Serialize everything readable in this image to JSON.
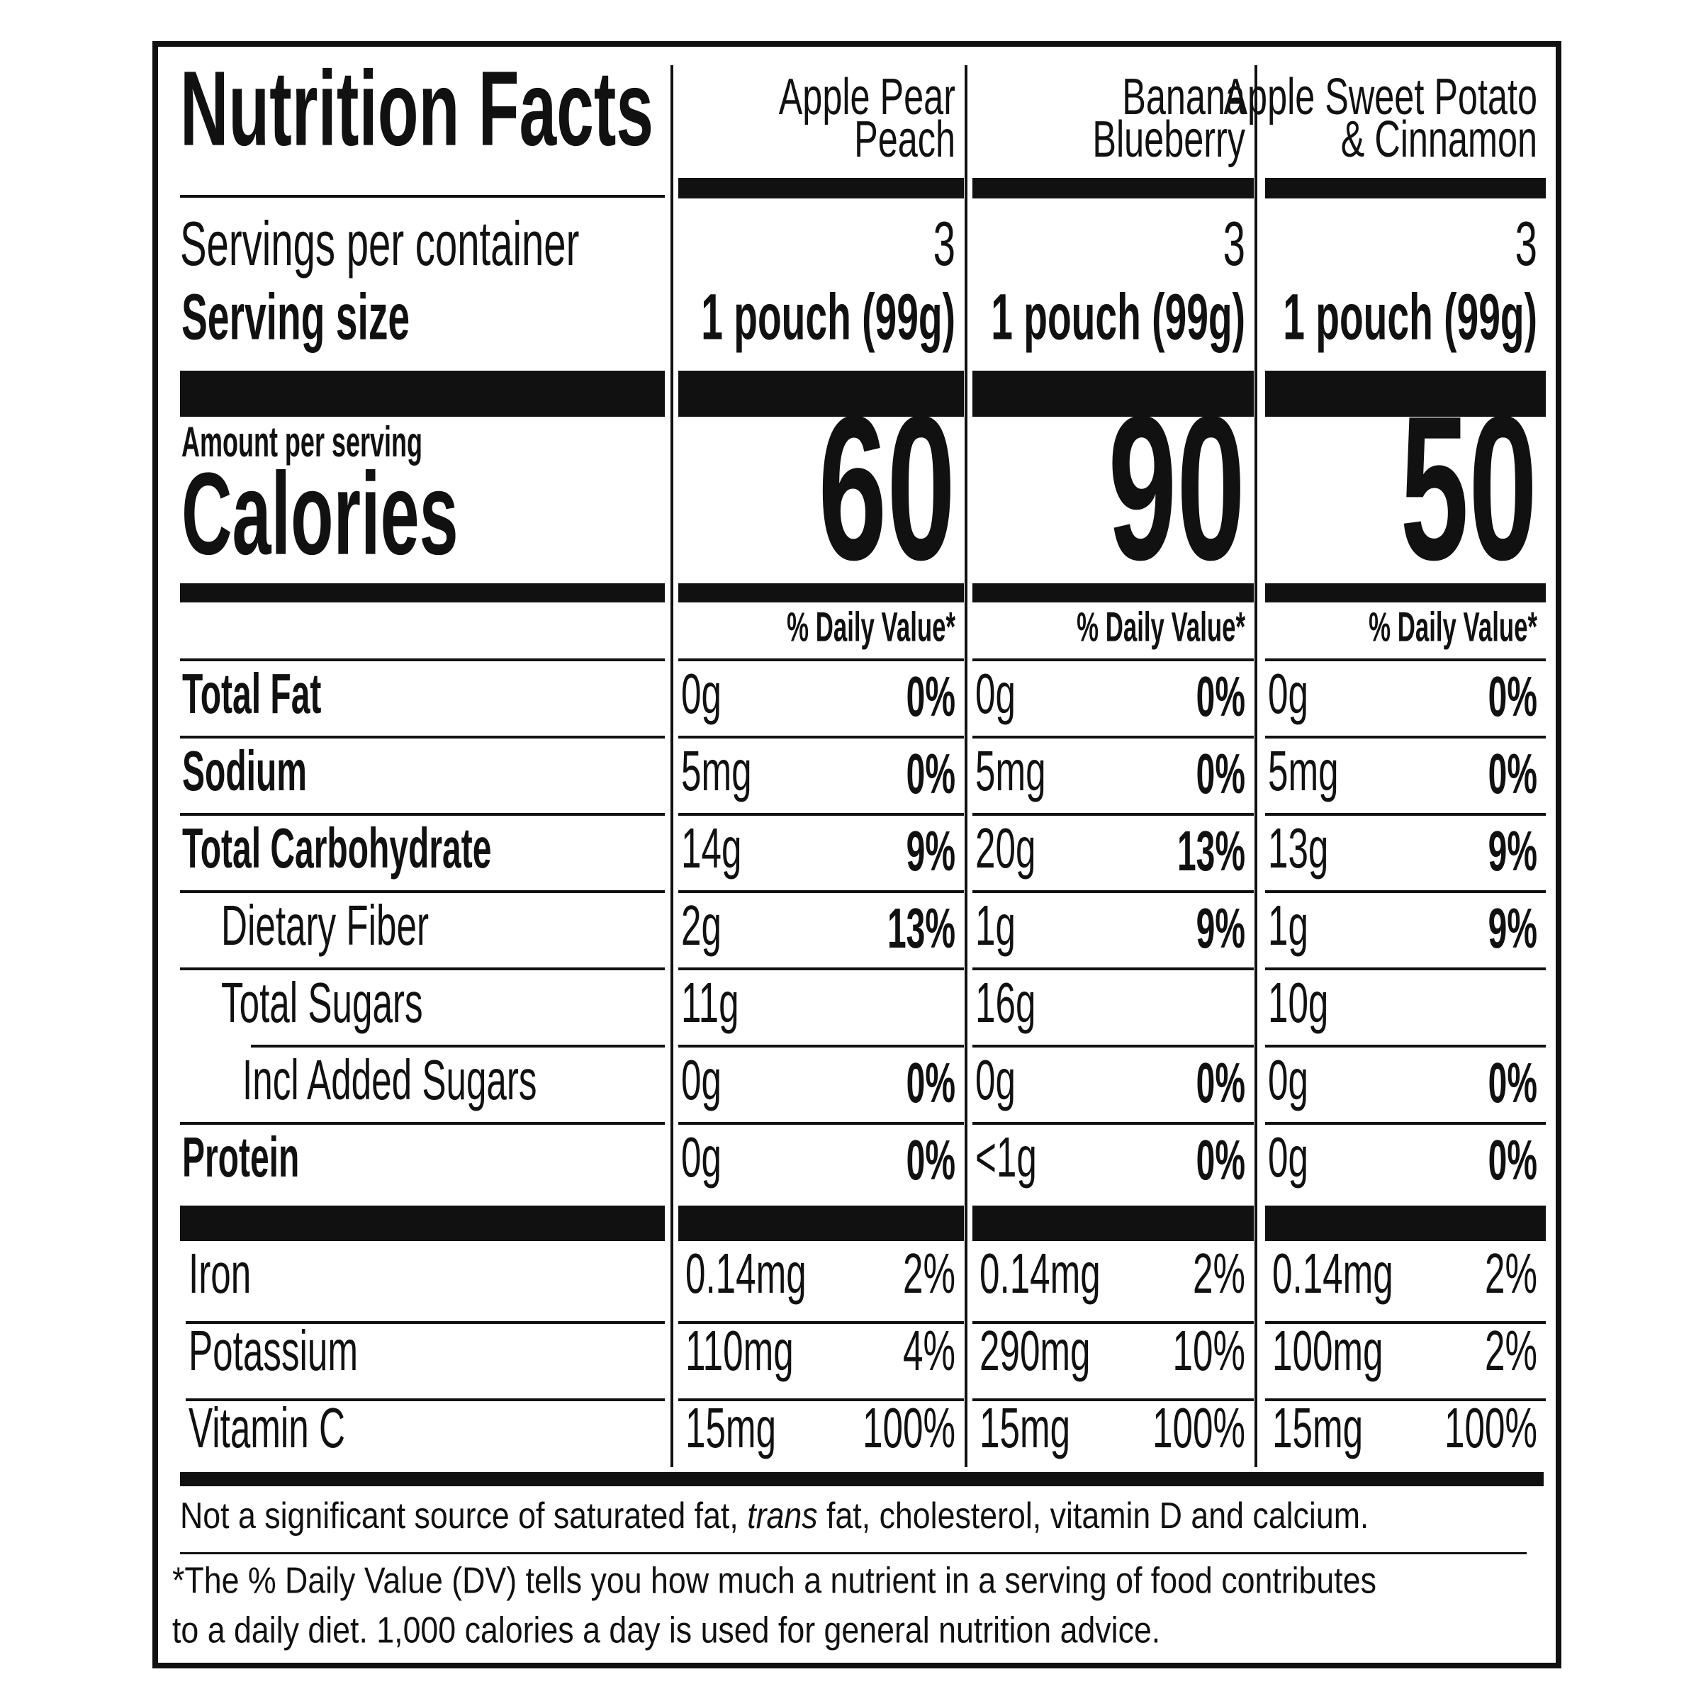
{
  "title": "Nutrition Facts",
  "servings_label": "Servings per container",
  "serving_size_label": "Serving size",
  "amount_label": "Amount per serving",
  "calories_label": "Calories",
  "nutrient_names": [
    "Total Fat",
    "Sodium",
    "Total Carbohydrate",
    "Dietary Fiber",
    "Total Sugars",
    "Incl Added Sugars",
    "Protein"
  ],
  "mineral_names": [
    "Iron",
    "Potassium",
    "Vitamin C"
  ],
  "columns": [
    {
      "name_lines": [
        "Apple Pear",
        "Peach"
      ],
      "servings": "3",
      "serving_size": "1 pouch (99g)",
      "calories": "60",
      "dv_header": "% Daily Value*",
      "nutrients": [
        [
          "0g",
          "0%"
        ],
        [
          "5mg",
          "0%"
        ],
        [
          "14g",
          "9%"
        ],
        [
          "2g",
          "13%"
        ],
        [
          "11g"
        ],
        [
          "0g",
          "0%"
        ],
        [
          "0g",
          "0%"
        ]
      ],
      "minerals": [
        [
          "0.14mg",
          "2%"
        ],
        [
          "110mg",
          "4%"
        ],
        [
          "15mg",
          "100%"
        ]
      ]
    },
    {
      "name_lines": [
        "Banana",
        "Blueberry"
      ],
      "servings": "3",
      "serving_size": "1 pouch (99g)",
      "calories": "90",
      "dv_header": "% Daily Value*",
      "nutrients": [
        [
          "0g",
          "0%"
        ],
        [
          "5mg",
          "0%"
        ],
        [
          "20g",
          "13%"
        ],
        [
          "1g",
          "9%"
        ],
        [
          "16g"
        ],
        [
          "0g",
          "0%"
        ],
        [
          "<1g",
          "0%"
        ]
      ],
      "minerals": [
        [
          "0.14mg",
          "2%"
        ],
        [
          "290mg",
          "10%"
        ],
        [
          "15mg",
          "100%"
        ]
      ]
    },
    {
      "name_lines": [
        "Apple Sweet Potato",
        "& Cinnamon"
      ],
      "servings": "3",
      "serving_size": "1 pouch (99g)",
      "calories": "50",
      "dv_header": "% Daily Value*",
      "nutrients": [
        [
          "0g",
          "0%"
        ],
        [
          "5mg",
          "0%"
        ],
        [
          "13g",
          "9%"
        ],
        [
          "1g",
          "9%"
        ],
        [
          "10g"
        ],
        [
          "0g",
          "0%"
        ],
        [
          "0g",
          "0%"
        ]
      ],
      "minerals": [
        [
          "0.14mg",
          "2%"
        ],
        [
          "100mg",
          "2%"
        ],
        [
          "15mg",
          "100%"
        ]
      ]
    }
  ],
  "footnote_parts": [
    "Not a significant source of saturated fat, ",
    "trans",
    " fat, cholesterol, vitamin D and calcium."
  ],
  "dv_note_lines": [
    "*The % Daily Value (DV) tells you how much a nutrient in a serving of food contributes",
    "to a daily diet. 1,000 calories a day is used for general nutrition advice."
  ]
}
